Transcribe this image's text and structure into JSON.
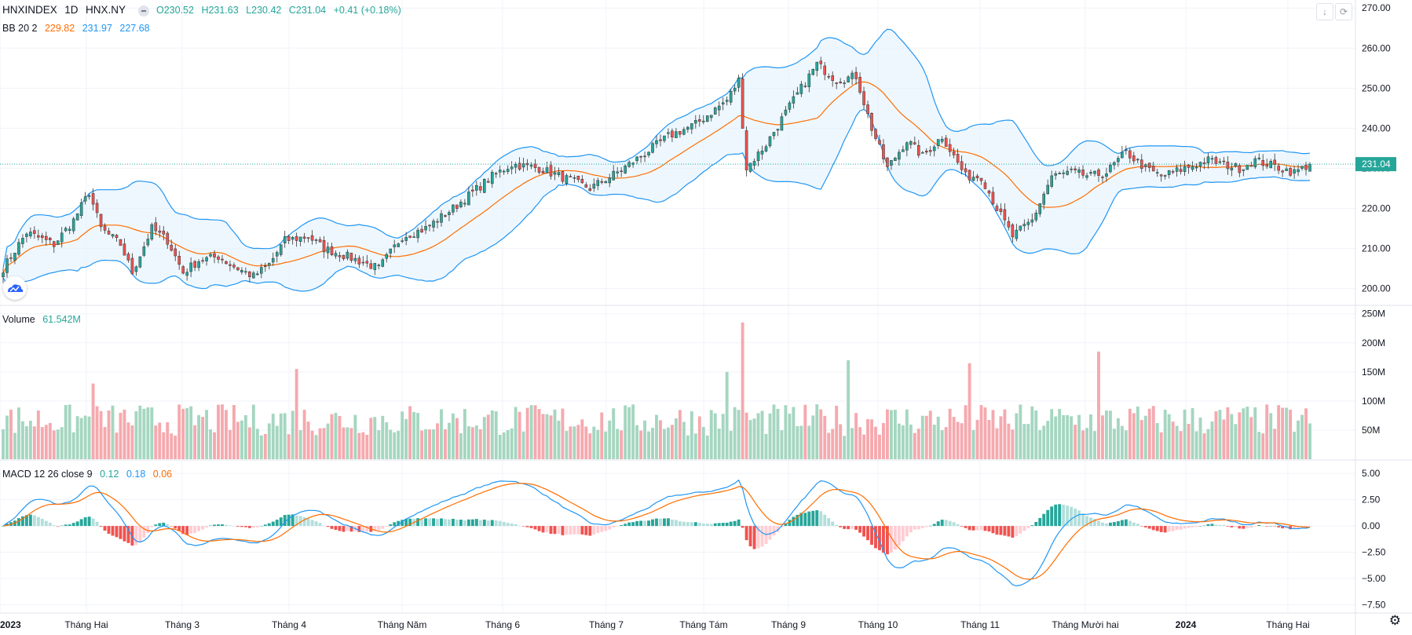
{
  "header": {
    "symbol": "HNXINDEX",
    "interval": "1D",
    "exchange": "HNX.NY",
    "open_label": "O230.52",
    "high_label": "H231.63",
    "low_label": "L230.42",
    "close_label": "C231.04",
    "change_label": "+0.41 (+0.18%)"
  },
  "bb_legend": {
    "label": "BB 20 2",
    "basis": "229.82",
    "upper": "231.97",
    "lower": "227.68"
  },
  "volume_legend": {
    "label": "Volume",
    "value": "61.542M"
  },
  "macd_legend": {
    "label": "MACD 12 26 close 9",
    "hist": "0.12",
    "macd": "0.18",
    "signal": "0.06"
  },
  "price_axis": {
    "ticks": [
      "270.00",
      "260.00",
      "250.00",
      "240.00",
      "230.00",
      "220.00",
      "210.00",
      "200.00"
    ],
    "last_price": "231.04"
  },
  "volume_axis": {
    "ticks": [
      "250M",
      "200M",
      "150M",
      "100M",
      "50M"
    ]
  },
  "macd_axis": {
    "ticks": [
      "5.00",
      "2.50",
      "0.00",
      "−2.50",
      "−5.00",
      "−7.50"
    ]
  },
  "time_axis": [
    "2023",
    "Tháng Hai",
    "Tháng 3",
    "Tháng 4",
    "Tháng Năm",
    "Tháng 6",
    "Tháng 7",
    "Tháng Tám",
    "Tháng 9",
    "Tháng 10",
    "Tháng 11",
    "Tháng Mười hai",
    "2024",
    "Tháng Hai"
  ],
  "colors": {
    "up": "#26a69a",
    "down": "#ef5350",
    "vol_up": "#a5d6c0",
    "vol_down": "#f5a9ae",
    "bb": "#2196f3",
    "basis": "#ff6d00",
    "macd": "#2196f3",
    "signal": "#ff6d00"
  },
  "icons": {
    "hide": "minus-circle-icon",
    "download": "download-icon",
    "fullscreen": "fullscreen-icon",
    "logo": "cloud-logo-icon",
    "settings": "gear-icon"
  },
  "chart_data": {
    "type": "candlestick",
    "ylim_price": [
      196,
      272
    ],
    "ylim_volume_m": [
      0,
      255
    ],
    "ylim_macd": [
      -8.2,
      6.2
    ],
    "close_waypoints": [
      [
        0,
        205
      ],
      [
        6,
        214
      ],
      [
        13,
        211
      ],
      [
        18,
        217
      ],
      [
        22,
        224
      ],
      [
        25,
        215
      ],
      [
        30,
        211
      ],
      [
        33,
        204
      ],
      [
        38,
        215
      ],
      [
        42,
        212
      ],
      [
        46,
        204
      ],
      [
        50,
        207
      ],
      [
        55,
        208
      ],
      [
        58,
        206
      ],
      [
        64,
        203
      ],
      [
        68,
        206
      ],
      [
        72,
        212
      ],
      [
        78,
        213
      ],
      [
        82,
        210
      ],
      [
        88,
        208
      ],
      [
        96,
        205
      ],
      [
        102,
        213
      ],
      [
        108,
        215
      ],
      [
        115,
        220
      ],
      [
        120,
        224
      ],
      [
        125,
        228
      ],
      [
        130,
        231
      ],
      [
        137,
        230
      ],
      [
        145,
        227
      ],
      [
        150,
        225
      ],
      [
        157,
        229
      ],
      [
        163,
        233
      ],
      [
        170,
        238
      ],
      [
        177,
        241
      ],
      [
        185,
        247
      ],
      [
        188,
        252
      ],
      [
        190,
        230
      ],
      [
        195,
        236
      ],
      [
        202,
        247
      ],
      [
        208,
        256
      ],
      [
        213,
        252
      ],
      [
        218,
        253
      ],
      [
        222,
        240
      ],
      [
        226,
        230
      ],
      [
        231,
        237
      ],
      [
        235,
        233
      ],
      [
        240,
        238
      ],
      [
        246,
        228
      ],
      [
        250,
        228
      ],
      [
        254,
        220
      ],
      [
        258,
        213
      ],
      [
        263,
        217
      ],
      [
        268,
        228
      ],
      [
        273,
        229
      ],
      [
        278,
        228
      ],
      [
        282,
        229
      ],
      [
        287,
        234
      ],
      [
        292,
        230
      ],
      [
        296,
        228
      ],
      [
        302,
        230
      ],
      [
        308,
        232
      ],
      [
        316,
        230
      ],
      [
        320,
        232
      ],
      [
        330,
        229
      ],
      [
        334,
        231
      ]
    ],
    "volume_spikes": {
      "189": 235,
      "216": 170,
      "247": 165,
      "280": 185,
      "75": 155,
      "185": 150,
      "23": 130
    },
    "bb_upper_label": "231.97",
    "bb_basis_label": "229.82",
    "bb_lower_label": "227.68",
    "last_close": 231.04
  }
}
